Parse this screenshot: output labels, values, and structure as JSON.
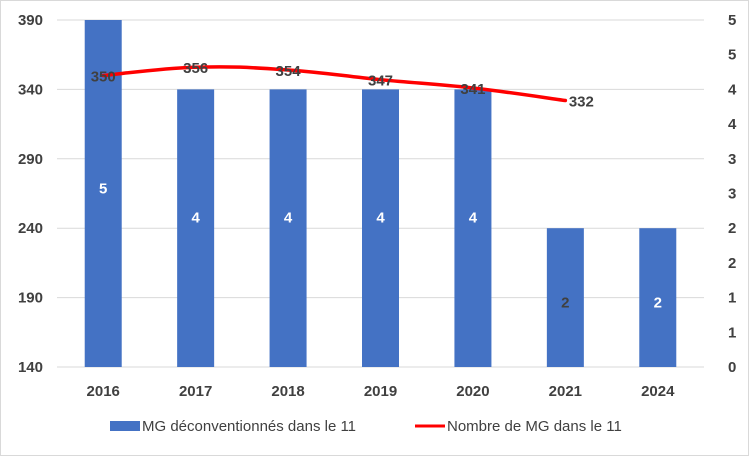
{
  "chart_data": {
    "type": "bar+line",
    "categories": [
      "2016",
      "2017",
      "2018",
      "2019",
      "2020",
      "2021",
      "2024"
    ],
    "series": [
      {
        "name": "MG déconventionnés dans le 11",
        "type": "bar",
        "axis": "secondary",
        "values": [
          5,
          4,
          4,
          4,
          4,
          2,
          2
        ],
        "color": "#4472C4"
      },
      {
        "name": "Nombre de MG dans le 11",
        "type": "line",
        "axis": "primary",
        "values": [
          350,
          356,
          354,
          347,
          341,
          332,
          null
        ],
        "color": "#FF0000"
      }
    ],
    "y_left": {
      "ticks": [
        "390",
        "340",
        "290",
        "240",
        "190",
        "140"
      ],
      "ylim": [
        140,
        390
      ]
    },
    "y_right": {
      "ticks": [
        "5",
        "5",
        "4",
        "4",
        "3",
        "3",
        "2",
        "2",
        "1",
        "1",
        "0"
      ],
      "ylim": [
        0,
        5
      ]
    },
    "grid": "horizontal",
    "legend_position": "bottom"
  }
}
